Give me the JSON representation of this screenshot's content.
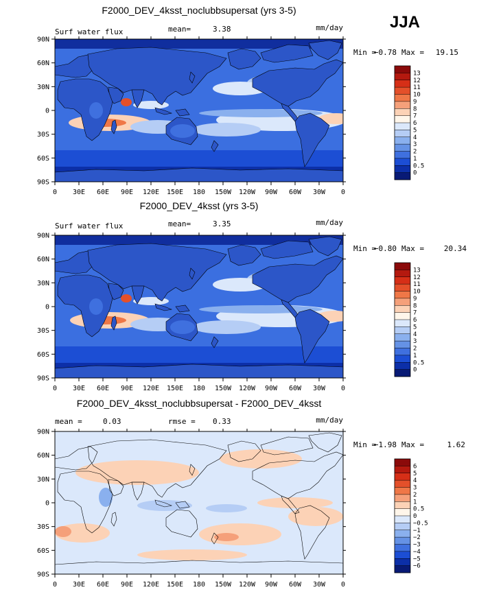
{
  "season": "JJA",
  "colors": {
    "ocean_base": "#3b6fe0",
    "land": "#2c56c8",
    "diff_base": "#d9e6fb",
    "coast": "#000000"
  },
  "chart_data": [
    {
      "type": "heatmap",
      "title": "F2000_DEV_4ksst_noclubbsupersat (yrs 3-5)",
      "variable": "Surf water flux",
      "mean_label": "mean=",
      "mean": "3.38",
      "units": "mm/day",
      "min_label": "Min =",
      "min": "−0.78",
      "max_label": "Max =",
      "max": "19.15",
      "x_ticks": [
        "0",
        "30E",
        "60E",
        "90E",
        "120E",
        "150E",
        "180",
        "150W",
        "120W",
        "90W",
        "60W",
        "30W",
        "0"
      ],
      "y_ticks": [
        "90N",
        "60N",
        "30N",
        "0",
        "30S",
        "60S",
        "90S"
      ],
      "ylim": [
        -90,
        90
      ],
      "levels": [
        "13",
        "12",
        "11",
        "10",
        "9",
        "8",
        "7",
        "6",
        "5",
        "4",
        "3",
        "2",
        "1",
        "0.5",
        "0"
      ],
      "colors": [
        "#8b0a0a",
        "#b4190f",
        "#d62f17",
        "#e4502a",
        "#ef7747",
        "#f5a07a",
        "#fcd2b6",
        "#fff6ea",
        "#dbe8fb",
        "#b5cdf5",
        "#8ab0ee",
        "#6592e5",
        "#3f70df",
        "#1c4ed4",
        "#0c2fa8",
        "#081a75"
      ]
    },
    {
      "type": "heatmap",
      "title": "F2000_DEV_4ksst (yrs 3-5)",
      "variable": "Surf water flux",
      "mean_label": "mean=",
      "mean": "3.35",
      "units": "mm/day",
      "min_label": "Min =",
      "min": "−0.80",
      "max_label": "Max =",
      "max": "20.34",
      "x_ticks": [
        "0",
        "30E",
        "60E",
        "90E",
        "120E",
        "150E",
        "180",
        "150W",
        "120W",
        "90W",
        "60W",
        "30W",
        "0"
      ],
      "y_ticks": [
        "90N",
        "60N",
        "30N",
        "0",
        "30S",
        "60S",
        "90S"
      ],
      "ylim": [
        -90,
        90
      ],
      "levels": [
        "13",
        "12",
        "11",
        "10",
        "9",
        "8",
        "7",
        "6",
        "5",
        "4",
        "3",
        "2",
        "1",
        "0.5",
        "0"
      ],
      "colors": [
        "#8b0a0a",
        "#b4190f",
        "#d62f17",
        "#e4502a",
        "#ef7747",
        "#f5a07a",
        "#fcd2b6",
        "#fff6ea",
        "#dbe8fb",
        "#b5cdf5",
        "#8ab0ee",
        "#6592e5",
        "#3f70df",
        "#1c4ed4",
        "#0c2fa8",
        "#081a75"
      ]
    },
    {
      "type": "heatmap",
      "title": "F2000_DEV_4ksst_noclubbsupersat - F2000_DEV_4ksst",
      "mean_label": "mean =",
      "mean": "0.03",
      "rmse_label": "rmse =",
      "rmse": "0.33",
      "units": "mm/day",
      "min_label": "Min =",
      "min": "−1.98",
      "max_label": "Max =",
      "max": "1.62",
      "x_ticks": [
        "0",
        "30E",
        "60E",
        "90E",
        "120E",
        "150E",
        "180",
        "150W",
        "120W",
        "90W",
        "60W",
        "30W",
        "0"
      ],
      "y_ticks": [
        "90N",
        "60N",
        "30N",
        "0",
        "30S",
        "60S",
        "90S"
      ],
      "ylim": [
        -90,
        90
      ],
      "levels": [
        "6",
        "5",
        "4",
        "3",
        "2",
        "1",
        "0.5",
        "0",
        "−0.5",
        "−1",
        "−2",
        "−3",
        "−4",
        "−5",
        "−6"
      ],
      "colors": [
        "#8b0a0a",
        "#b4190f",
        "#d62f17",
        "#e4502a",
        "#ef7747",
        "#f5a07a",
        "#fcd2b6",
        "#fff6ea",
        "#dbe8fb",
        "#b5cdf5",
        "#8ab0ee",
        "#6592e5",
        "#3f70df",
        "#1c4ed4",
        "#0c2fa8",
        "#081a75"
      ]
    }
  ]
}
